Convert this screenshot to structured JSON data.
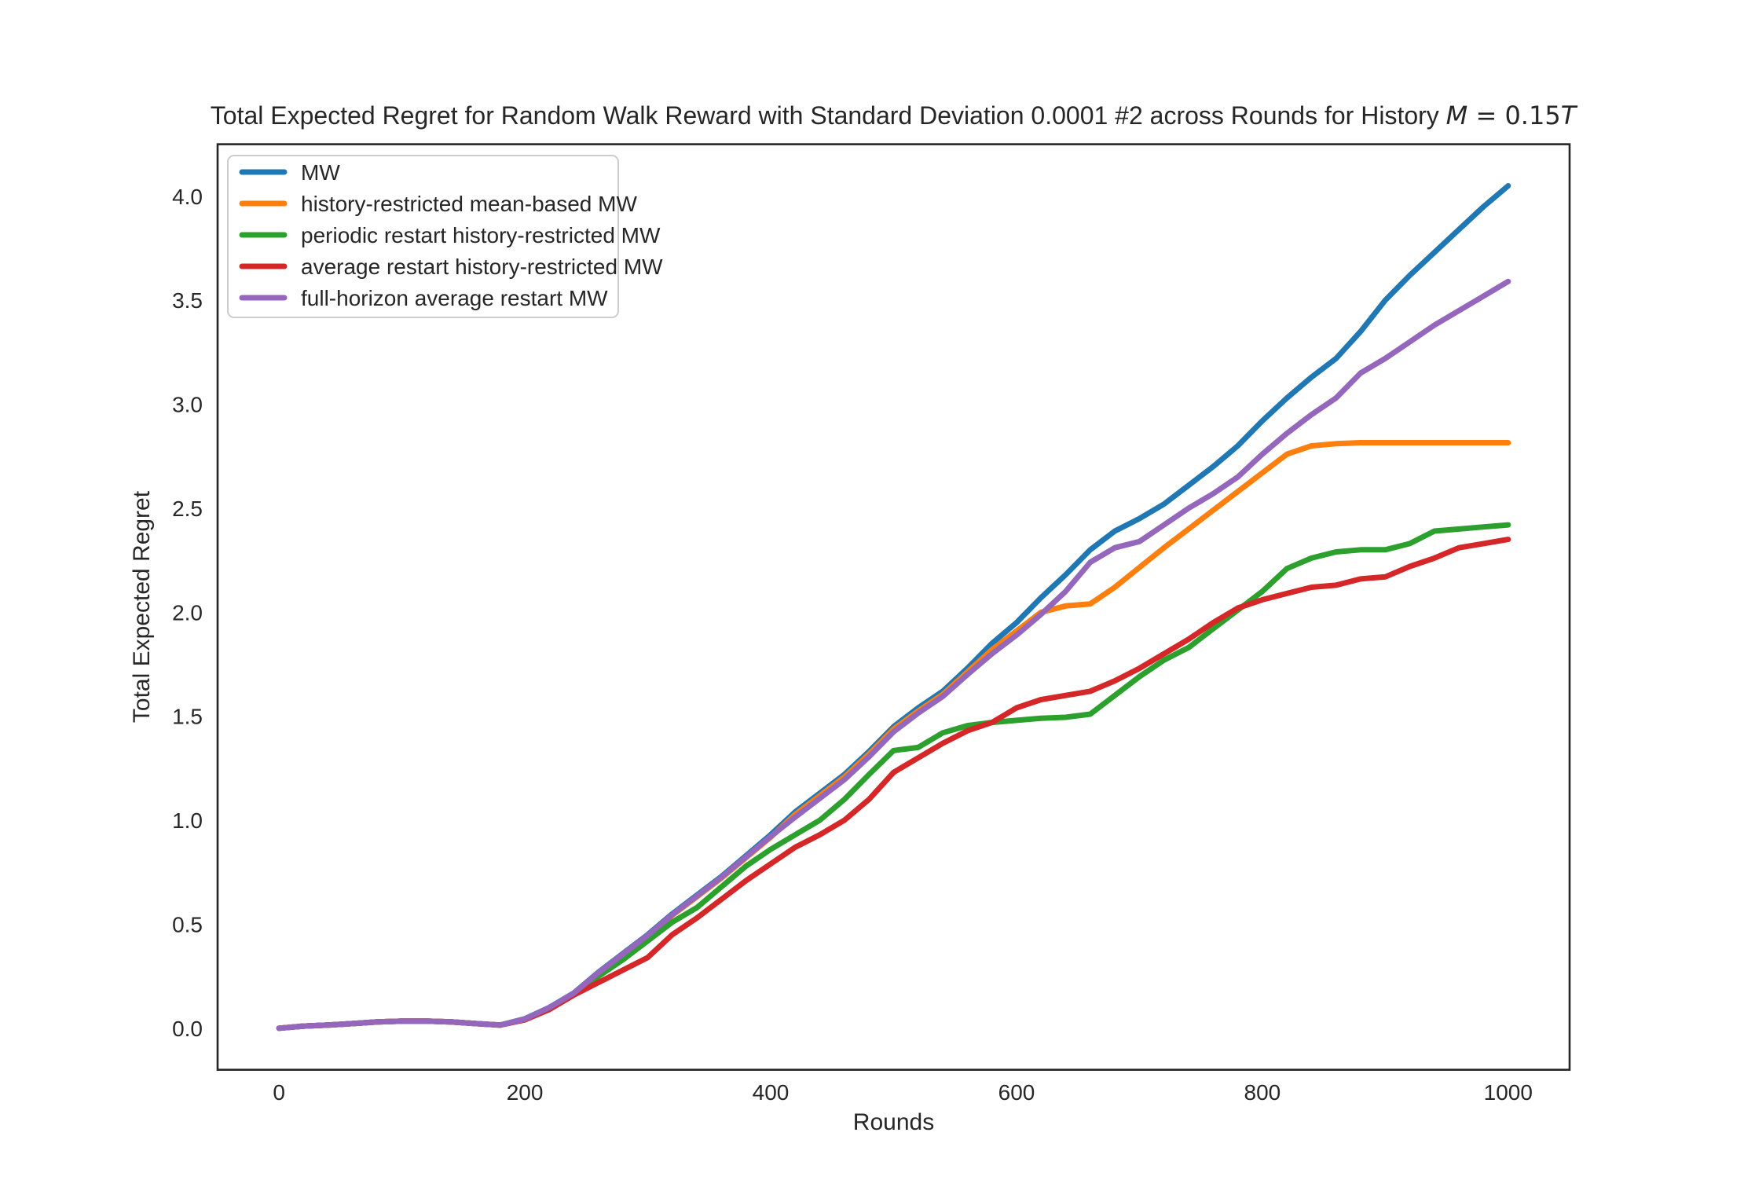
{
  "title": {
    "text_prefix": "Total Expected Regret for Random Walk Reward with Standard Deviation 0.0001 #2 across Rounds for History ",
    "math_var1": "M",
    "math_mid": " = 0.15",
    "math_var2": "T"
  },
  "colors": {
    "background": "#ffffff",
    "text": "#262626",
    "spine": "#262626",
    "legend_border": "#cccccc"
  },
  "chart_data": {
    "type": "line",
    "title": "Total Expected Regret for Random Walk Reward with Standard Deviation 0.0001 #2 across Rounds for History M = 0.15T",
    "xlabel": "Rounds",
    "ylabel": "Total Expected Regret",
    "xlim": [
      -50,
      1050
    ],
    "ylim": [
      -0.2,
      4.25
    ],
    "x_ticks": [
      0,
      200,
      400,
      600,
      800,
      1000
    ],
    "y_ticks": [
      0.0,
      0.5,
      1.0,
      1.5,
      2.0,
      2.5,
      3.0,
      3.5,
      4.0
    ],
    "grid": false,
    "legend_position": "upper left",
    "line_width": 7,
    "x": [
      0,
      20,
      40,
      60,
      80,
      100,
      120,
      140,
      160,
      180,
      200,
      220,
      240,
      260,
      280,
      300,
      320,
      340,
      360,
      380,
      400,
      420,
      440,
      460,
      480,
      500,
      520,
      540,
      560,
      580,
      600,
      620,
      640,
      660,
      680,
      700,
      720,
      740,
      760,
      780,
      800,
      820,
      840,
      860,
      880,
      900,
      920,
      940,
      960,
      980,
      1000
    ],
    "series": [
      {
        "name": "MW",
        "color": "#1f77b4",
        "values": [
          0.0,
          0.01,
          0.015,
          0.022,
          0.03,
          0.034,
          0.034,
          0.03,
          0.022,
          0.015,
          0.045,
          0.1,
          0.17,
          0.27,
          0.36,
          0.45,
          0.55,
          0.64,
          0.73,
          0.83,
          0.93,
          1.04,
          1.13,
          1.22,
          1.33,
          1.45,
          1.54,
          1.62,
          1.73,
          1.85,
          1.95,
          2.07,
          2.18,
          2.3,
          2.39,
          2.45,
          2.52,
          2.61,
          2.7,
          2.8,
          2.92,
          3.03,
          3.13,
          3.22,
          3.35,
          3.5,
          3.62,
          3.73,
          3.84,
          3.95,
          4.05
        ]
      },
      {
        "name": "history-restricted mean-based MW",
        "color": "#ff7f0e",
        "values": [
          0.0,
          0.01,
          0.015,
          0.022,
          0.03,
          0.034,
          0.034,
          0.03,
          0.022,
          0.015,
          0.043,
          0.098,
          0.168,
          0.266,
          0.355,
          0.444,
          0.543,
          0.632,
          0.722,
          0.82,
          0.918,
          1.028,
          1.118,
          1.208,
          1.318,
          1.438,
          1.525,
          1.605,
          1.712,
          1.82,
          1.91,
          2.0,
          2.03,
          2.04,
          2.12,
          2.215,
          2.31,
          2.4,
          2.49,
          2.58,
          2.67,
          2.76,
          2.8,
          2.81,
          2.815,
          2.815,
          2.815,
          2.815,
          2.815,
          2.815,
          2.815
        ]
      },
      {
        "name": "periodic restart history-restricted MW",
        "color": "#2ca02c",
        "values": [
          0.0,
          0.01,
          0.015,
          0.022,
          0.03,
          0.034,
          0.034,
          0.03,
          0.022,
          0.015,
          0.042,
          0.095,
          0.165,
          0.25,
          0.33,
          0.42,
          0.51,
          0.58,
          0.68,
          0.78,
          0.86,
          0.93,
          1.0,
          1.1,
          1.22,
          1.335,
          1.35,
          1.42,
          1.455,
          1.47,
          1.48,
          1.49,
          1.495,
          1.51,
          1.6,
          1.69,
          1.77,
          1.83,
          1.92,
          2.01,
          2.1,
          2.21,
          2.26,
          2.29,
          2.3,
          2.3,
          2.33,
          2.39,
          2.4,
          2.41,
          2.42
        ]
      },
      {
        "name": "average restart history-restricted MW",
        "color": "#d62728",
        "values": [
          0.0,
          0.01,
          0.015,
          0.022,
          0.03,
          0.034,
          0.034,
          0.03,
          0.022,
          0.015,
          0.04,
          0.09,
          0.16,
          0.22,
          0.28,
          0.34,
          0.45,
          0.53,
          0.62,
          0.71,
          0.79,
          0.87,
          0.93,
          1.0,
          1.1,
          1.23,
          1.3,
          1.37,
          1.43,
          1.47,
          1.54,
          1.58,
          1.6,
          1.62,
          1.67,
          1.73,
          1.8,
          1.87,
          1.95,
          2.02,
          2.06,
          2.09,
          2.12,
          2.13,
          2.16,
          2.17,
          2.22,
          2.26,
          2.31,
          2.33,
          2.35
        ]
      },
      {
        "name": "full-horizon average restart MW",
        "color": "#9467bd",
        "values": [
          0.0,
          0.01,
          0.015,
          0.022,
          0.03,
          0.034,
          0.034,
          0.03,
          0.022,
          0.015,
          0.044,
          0.099,
          0.169,
          0.268,
          0.357,
          0.447,
          0.546,
          0.636,
          0.726,
          0.824,
          0.922,
          1.015,
          1.105,
          1.195,
          1.305,
          1.425,
          1.515,
          1.595,
          1.7,
          1.8,
          1.89,
          1.99,
          2.1,
          2.24,
          2.31,
          2.34,
          2.42,
          2.5,
          2.57,
          2.65,
          2.76,
          2.86,
          2.95,
          3.03,
          3.15,
          3.22,
          3.3,
          3.38,
          3.45,
          3.52,
          3.59
        ]
      }
    ]
  }
}
